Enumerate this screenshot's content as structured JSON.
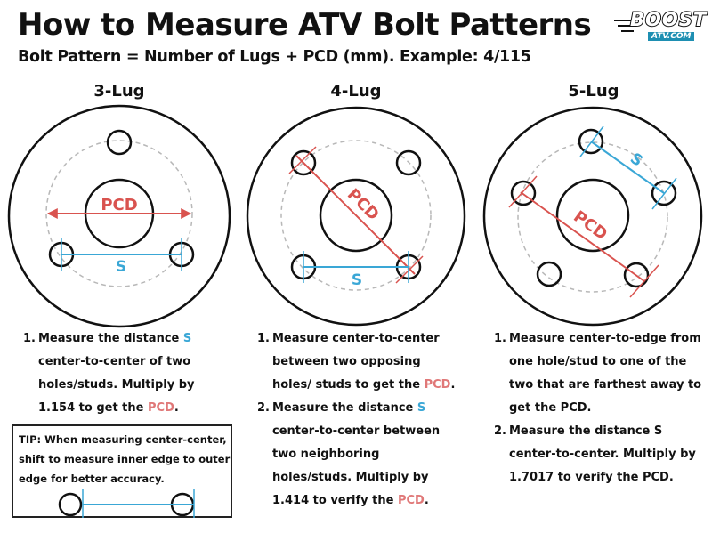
{
  "header": {
    "title": "How to Measure ATV Bolt Patterns",
    "subtitle": "Bolt Pattern = Number of Lugs + PCD (mm). Example: 4/115",
    "logo": {
      "main": "BOOST",
      "sub": "ATV.COM"
    }
  },
  "colors": {
    "pcd": "#d9534f",
    "s": "#3aa7d6",
    "dashed": "#b0b0b0"
  },
  "diagrams": [
    {
      "label": "3-Lug",
      "pcd_label": "PCD",
      "s_label": "S"
    },
    {
      "label": "4-Lug",
      "pcd_label": "PCD",
      "s_label": "S"
    },
    {
      "label": "5-Lug",
      "pcd_label": "PCD",
      "s_label": "S"
    }
  ],
  "instructions": {
    "three": {
      "step1": {
        "num": "1.",
        "a": "Measure the distance ",
        "s": "S",
        "b": " center-to-center of two holes/studs. Multiply by 1.154 to get the ",
        "pcd": "PCD",
        "c": "."
      }
    },
    "four": {
      "step1": {
        "num": "1.",
        "a": "Measure center-to-center between two opposing holes/ studs to get the ",
        "pcd": "PCD",
        "c": "."
      },
      "step2": {
        "num": "2.",
        "a": "Measure the distance ",
        "s": "S",
        "b": " center-to-center between two neighboring holes/studs. Multiply by 1.414 to verify the ",
        "pcd": "PCD",
        "c": "."
      }
    },
    "five": {
      "step1": {
        "num": "1.",
        "a": "Measure center-to-edge from one hole/stud to one of the two that are farthest away to get the PCD."
      },
      "step2": {
        "num": "2.",
        "a": "Measure the distance S center-to-center. Multiply by 1.7017 to verify the PCD."
      }
    }
  },
  "tip": {
    "text": "TIP: When measuring center-center, shift to measure inner edge to outer edge for better accuracy."
  }
}
